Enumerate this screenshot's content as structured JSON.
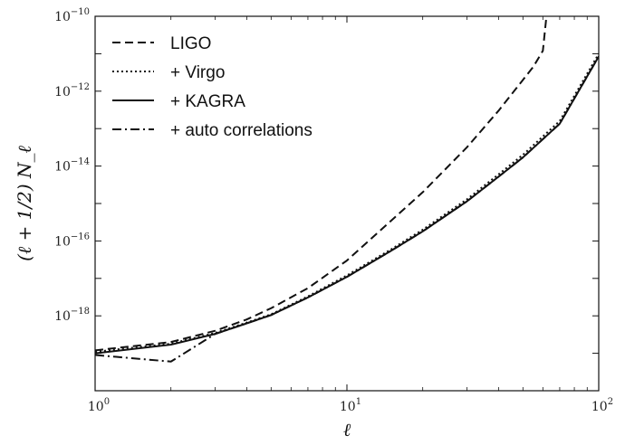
{
  "chart_data": {
    "type": "line",
    "title": "",
    "xlabel": "ℓ",
    "ylabel": "(ℓ + 1/2) N_ℓ",
    "x_scale": "log",
    "y_scale": "log",
    "xlim": [
      1,
      100
    ],
    "ylim": [
      1e-20,
      1e-10
    ],
    "grid": false,
    "legend_position": "top-left",
    "x_ticks": [
      {
        "base": "10",
        "exp": "0",
        "value": 1
      },
      {
        "base": "10",
        "exp": "1",
        "value": 10
      },
      {
        "base": "10",
        "exp": "2",
        "value": 100
      }
    ],
    "y_ticks": [
      {
        "base": "10",
        "exp": "−18",
        "value": 1e-18
      },
      {
        "base": "10",
        "exp": "−16",
        "value": 1e-16
      },
      {
        "base": "10",
        "exp": "−14",
        "value": 1e-14
      },
      {
        "base": "10",
        "exp": "−12",
        "value": 1e-12
      },
      {
        "base": "10",
        "exp": "−10",
        "value": 1e-10
      }
    ],
    "series": [
      {
        "name": "LIGO",
        "style": "dashed",
        "color": "#111111",
        "x": [
          1,
          2,
          3,
          4,
          5,
          7,
          10,
          15,
          20,
          30,
          40,
          50,
          55,
          60,
          62
        ],
        "y": [
          1.2e-19,
          2e-19,
          4e-19,
          8e-19,
          1.6e-18,
          5.5e-18,
          3e-17,
          3.5e-16,
          2e-15,
          3.2e-14,
          3e-13,
          2e-12,
          4.5e-12,
          1.2e-11,
          1e-10
        ]
      },
      {
        "name": "+ Virgo",
        "style": "dotted",
        "color": "#111111",
        "x": [
          1,
          2,
          3,
          4,
          5,
          7,
          10,
          15,
          20,
          30,
          40,
          50,
          70,
          100
        ],
        "y": [
          1.1e-19,
          1.8e-19,
          3.5e-19,
          6.6e-19,
          1.1e-18,
          3.3e-18,
          1.2e-17,
          6e-17,
          2e-16,
          1.3e-15,
          6e-15,
          2e-14,
          1.6e-13,
          1e-11
        ]
      },
      {
        "name": "+ KAGRA",
        "style": "solid",
        "color": "#111111",
        "x": [
          1,
          2,
          3,
          4,
          5,
          7,
          10,
          15,
          20,
          30,
          40,
          50,
          70,
          100
        ],
        "y": [
          1e-19,
          1.7e-19,
          3.3e-19,
          6.3e-19,
          1.05e-18,
          3.1e-18,
          1.1e-17,
          5.5e-17,
          1.8e-16,
          1.15e-15,
          5.2e-15,
          1.7e-14,
          1.35e-13,
          8.5e-12
        ]
      },
      {
        "name": "+ auto correlations",
        "style": "dashdot",
        "color": "#111111",
        "x": [
          1,
          2,
          3,
          4,
          5,
          7,
          10,
          15,
          20,
          30,
          40,
          50,
          70,
          100
        ],
        "y": [
          9e-20,
          6e-20,
          3.3e-19,
          6.3e-19,
          1.05e-18,
          3.1e-18,
          1.1e-17,
          5.5e-17,
          1.8e-16,
          1.15e-15,
          5.2e-15,
          1.7e-14,
          1.35e-13,
          8.5e-12
        ]
      }
    ]
  }
}
